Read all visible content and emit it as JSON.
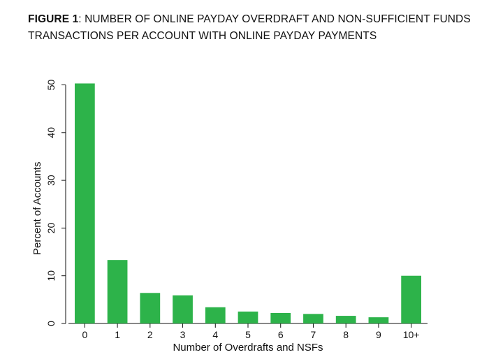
{
  "figure": {
    "label": "FIGURE 1",
    "separator": ":",
    "title": " NUMBER OF ONLINE PAYDAY OVERDRAFT AND NON-SUFFICIENT FUNDS TRANSACTIONS PER ACCOUNT WITH ONLINE PAYDAY PAYMENTS"
  },
  "chart_data": {
    "type": "bar",
    "categories": [
      "0",
      "1",
      "2",
      "3",
      "4",
      "5",
      "6",
      "7",
      "8",
      "9",
      "10+"
    ],
    "values": [
      50.3,
      13.3,
      6.4,
      5.9,
      3.4,
      2.5,
      2.2,
      2.0,
      1.6,
      1.3,
      10.0
    ],
    "xlabel": "Number of Overdrafts and NSFs",
    "ylabel": "Percent of Accounts",
    "ylim": [
      0,
      52
    ],
    "yticks": [
      0,
      10,
      20,
      30,
      40,
      50
    ],
    "bar_color": "#2db34a",
    "grid": false,
    "legend": "none"
  }
}
